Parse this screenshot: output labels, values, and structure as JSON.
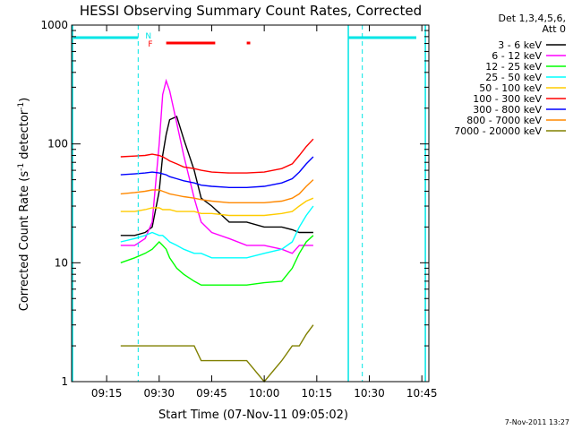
{
  "chart_data": {
    "type": "line",
    "title": "HESSI Observing Summary Count Rates, Corrected",
    "xlabel": "Start Time (07-Nov-11 09:05:02)",
    "ylabel": "Corrected Count Rate (s",
    "ylabel_sup1": "-1",
    "ylabel_mid": " detector",
    "ylabel_sup2": "-1",
    "ylabel_end": ")",
    "yscale": "log",
    "xlim": [
      "09:05",
      "10:47"
    ],
    "ylim": [
      1,
      1000
    ],
    "x_ticks": [
      "09:15",
      "09:30",
      "09:45",
      "10:00",
      "10:15",
      "10:30",
      "10:45"
    ],
    "y_ticks": [
      "1",
      "10",
      "100",
      "1000"
    ],
    "legend_header_1": "Det 1,3,4,5,6,",
    "legend_header_2": "Att 0",
    "legend_position": "right",
    "night_boundaries": [
      "09:24",
      "10:28"
    ],
    "saa_boundaries": [
      "09:04",
      "10:24",
      "10:46"
    ],
    "flag_labels": {
      "night": "N",
      "flare": "F"
    },
    "flare_flag_intervals": [
      [
        "09:32",
        "09:46"
      ],
      [
        "09:55",
        "09:56"
      ]
    ],
    "colors": {
      "axis": "#000000",
      "flags_cyan": "#00e5e5",
      "flare_flag": "#ff0000"
    },
    "x": [
      "09:19",
      "09:23",
      "09:26",
      "09:28",
      "09:30",
      "09:31",
      "09:32",
      "09:33",
      "09:35",
      "09:37",
      "09:40",
      "09:42",
      "09:45",
      "09:50",
      "09:55",
      "10:00",
      "10:05",
      "10:08",
      "10:10",
      "10:12",
      "10:14"
    ],
    "series": [
      {
        "name": "3 - 6 keV",
        "color": "#000000",
        "values": [
          17,
          17,
          18,
          20,
          40,
          80,
          120,
          160,
          170,
          110,
          60,
          35,
          30,
          22,
          22,
          20,
          20,
          19,
          18,
          18,
          18
        ]
      },
      {
        "name": "6 - 12 keV",
        "color": "#ff00ff",
        "values": [
          14,
          14,
          16,
          22,
          100,
          260,
          340,
          280,
          150,
          80,
          35,
          22,
          18,
          16,
          14,
          14,
          13,
          12,
          14,
          14,
          14
        ]
      },
      {
        "name": "12 - 25 keV",
        "color": "#00ff00",
        "values": [
          10,
          11,
          12,
          13,
          15,
          14,
          13,
          11,
          9,
          8,
          7,
          6.5,
          6.5,
          6.5,
          6.5,
          6.8,
          7,
          9,
          12,
          15,
          17
        ]
      },
      {
        "name": "25 - 50 keV",
        "color": "#00ffff",
        "values": [
          15,
          16,
          17,
          18,
          17,
          17,
          16,
          15,
          14,
          13,
          12,
          12,
          11,
          11,
          11,
          12,
          13,
          15,
          20,
          25,
          30
        ]
      },
      {
        "name": "50 - 100 keV",
        "color": "#ffcc00",
        "values": [
          27,
          27,
          28,
          29,
          29,
          28,
          28,
          28,
          27,
          27,
          27,
          26,
          26,
          25,
          25,
          25,
          26,
          27,
          30,
          33,
          35
        ]
      },
      {
        "name": "100 - 300 keV",
        "color": "#ff0000",
        "values": [
          78,
          79,
          80,
          82,
          80,
          78,
          75,
          72,
          68,
          64,
          62,
          60,
          58,
          57,
          57,
          58,
          62,
          68,
          80,
          95,
          110
        ]
      },
      {
        "name": "300 - 800 keV",
        "color": "#0000ff",
        "values": [
          55,
          56,
          57,
          58,
          57,
          56,
          55,
          53,
          51,
          49,
          47,
          45,
          44,
          43,
          43,
          44,
          47,
          51,
          58,
          68,
          78
        ]
      },
      {
        "name": "800 - 7000 keV",
        "color": "#ff8800",
        "values": [
          38,
          39,
          40,
          41,
          41,
          40,
          39,
          38,
          37,
          36,
          35,
          34,
          33,
          32,
          32,
          32,
          33,
          35,
          38,
          44,
          50
        ]
      },
      {
        "name": "7000 - 20000 keV",
        "color": "#808000",
        "values": [
          2,
          2,
          2,
          2,
          2,
          2,
          2,
          2,
          2,
          2,
          2,
          1.5,
          1.5,
          1.5,
          1.5,
          1,
          1.5,
          2,
          2,
          2.5,
          3
        ]
      }
    ]
  },
  "footer_stamp": "7-Nov-2011 13:27"
}
